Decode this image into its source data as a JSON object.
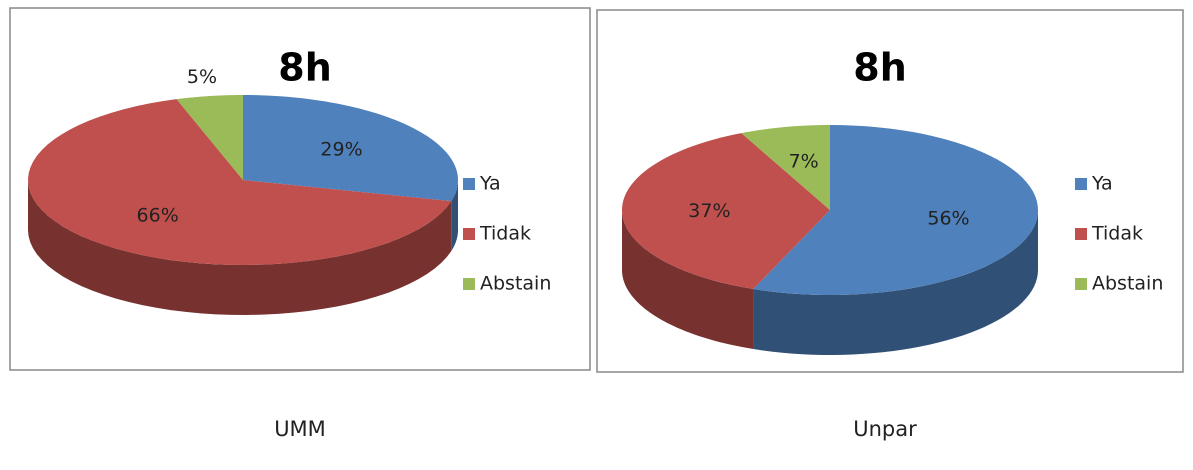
{
  "chart_data": [
    {
      "type": "pie",
      "title": "8h",
      "caption": "UMM",
      "categories": [
        "Ya",
        "Tidak",
        "Abstain"
      ],
      "values": [
        29,
        66,
        5
      ],
      "value_labels": [
        "29%",
        "66%",
        "5%"
      ],
      "colors": [
        "#4f81bd",
        "#c0504d",
        "#9bbb59"
      ],
      "legend": "right"
    },
    {
      "type": "pie",
      "title": "8h",
      "caption": "Unpar",
      "categories": [
        "Ya",
        "Tidak",
        "Abstain"
      ],
      "values": [
        56,
        37,
        7
      ],
      "value_labels": [
        "56%",
        "37%",
        "7%"
      ],
      "colors": [
        "#4f81bd",
        "#c0504d",
        "#9bbb59"
      ],
      "legend": "right"
    }
  ]
}
